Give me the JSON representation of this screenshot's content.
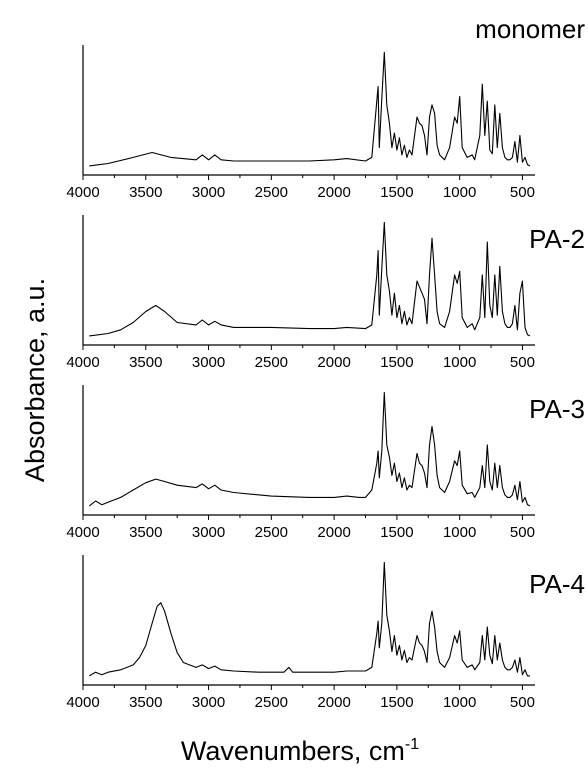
{
  "chart_data": {
    "type": "line",
    "ylabel": "Absorbance, a.u.",
    "xlabel": {
      "main": "Wavenumbers, cm",
      "sup": "-1"
    },
    "x_reversed": true,
    "xlim": [
      4000,
      400
    ],
    "ylim": [
      0,
      1
    ],
    "xticks": [
      4000,
      3500,
      3000,
      2500,
      2000,
      1500,
      1000,
      500
    ],
    "xtick_labels": [
      "4000",
      "3500",
      "3000",
      "2500",
      "2000",
      "1500",
      "1000",
      "500"
    ],
    "panels": [
      {
        "label": "monomer",
        "series": [
          {
            "x": [
              3950,
              3800,
              3600,
              3450,
              3300,
              3100,
              3050,
              3000,
              2950,
              2900,
              2800,
              2500,
              2200,
              2000,
              1900,
              1750,
              1700,
              1660,
              1650,
              1640,
              1620,
              1600,
              1580,
              1560,
              1540,
              1520,
              1500,
              1480,
              1460,
              1440,
              1420,
              1400,
              1380,
              1340,
              1320,
              1300,
              1280,
              1260,
              1240,
              1220,
              1200,
              1180,
              1160,
              1120,
              1080,
              1040,
              1020,
              1000,
              980,
              940,
              900,
              880,
              840,
              820,
              800,
              780,
              760,
              740,
              720,
              700,
              680,
              660,
              640,
              620,
              600,
              580,
              560,
              540,
              520,
              500,
              480,
              460,
              440
            ],
            "y": [
              0.05,
              0.07,
              0.12,
              0.16,
              0.12,
              0.1,
              0.14,
              0.1,
              0.14,
              0.1,
              0.09,
              0.09,
              0.09,
              0.1,
              0.11,
              0.09,
              0.12,
              0.58,
              0.7,
              0.2,
              0.6,
              0.98,
              0.55,
              0.4,
              0.2,
              0.32,
              0.18,
              0.28,
              0.14,
              0.22,
              0.12,
              0.18,
              0.14,
              0.45,
              0.4,
              0.38,
              0.3,
              0.14,
              0.45,
              0.55,
              0.48,
              0.22,
              0.14,
              0.1,
              0.2,
              0.45,
              0.4,
              0.62,
              0.2,
              0.12,
              0.14,
              0.1,
              0.3,
              0.72,
              0.3,
              0.58,
              0.18,
              0.15,
              0.55,
              0.2,
              0.48,
              0.2,
              0.12,
              0.1,
              0.1,
              0.12,
              0.25,
              0.08,
              0.3,
              0.08,
              0.12,
              0.06,
              0.05
            ]
          }
        ]
      },
      {
        "label": "PA-2",
        "series": [
          {
            "x": [
              3950,
              3800,
              3700,
              3600,
              3500,
              3420,
              3350,
              3250,
              3100,
              3050,
              3000,
              2950,
              2900,
              2800,
              2500,
              2200,
              2000,
              1900,
              1750,
              1700,
              1660,
              1650,
              1640,
              1620,
              1600,
              1580,
              1560,
              1540,
              1520,
              1500,
              1480,
              1460,
              1440,
              1420,
              1400,
              1380,
              1340,
              1320,
              1300,
              1280,
              1260,
              1240,
              1220,
              1200,
              1180,
              1160,
              1120,
              1080,
              1040,
              1020,
              1000,
              980,
              940,
              900,
              880,
              840,
              820,
              800,
              780,
              760,
              740,
              720,
              700,
              680,
              660,
              640,
              620,
              600,
              580,
              560,
              540,
              520,
              500,
              480,
              460,
              440
            ],
            "y": [
              0.05,
              0.07,
              0.1,
              0.16,
              0.25,
              0.3,
              0.25,
              0.16,
              0.14,
              0.18,
              0.14,
              0.17,
              0.14,
              0.12,
              0.12,
              0.11,
              0.11,
              0.12,
              0.11,
              0.14,
              0.55,
              0.75,
              0.22,
              0.6,
              0.98,
              0.55,
              0.42,
              0.22,
              0.4,
              0.2,
              0.3,
              0.15,
              0.25,
              0.14,
              0.2,
              0.15,
              0.5,
              0.45,
              0.4,
              0.35,
              0.15,
              0.55,
              0.85,
              0.55,
              0.25,
              0.15,
              0.12,
              0.25,
              0.55,
              0.48,
              0.58,
              0.2,
              0.12,
              0.15,
              0.1,
              0.2,
              0.55,
              0.2,
              0.82,
              0.3,
              0.2,
              0.55,
              0.22,
              0.62,
              0.25,
              0.15,
              0.12,
              0.12,
              0.15,
              0.3,
              0.1,
              0.4,
              0.5,
              0.12,
              0.06,
              0.05
            ]
          }
        ]
      },
      {
        "label": "PA-3",
        "series": [
          {
            "x": [
              3950,
              3900,
              3850,
              3800,
              3700,
              3600,
              3500,
              3420,
              3350,
              3250,
              3100,
              3050,
              3000,
              2950,
              2900,
              2800,
              2500,
              2200,
              2000,
              1900,
              1800,
              1750,
              1700,
              1660,
              1650,
              1640,
              1620,
              1600,
              1580,
              1560,
              1540,
              1520,
              1500,
              1480,
              1460,
              1440,
              1420,
              1400,
              1380,
              1340,
              1320,
              1300,
              1280,
              1260,
              1240,
              1220,
              1200,
              1180,
              1160,
              1120,
              1080,
              1040,
              1020,
              1000,
              980,
              940,
              900,
              880,
              840,
              820,
              800,
              780,
              760,
              740,
              720,
              700,
              680,
              660,
              640,
              620,
              600,
              580,
              560,
              540,
              520,
              500,
              480,
              460,
              440
            ],
            "y": [
              0.05,
              0.09,
              0.06,
              0.08,
              0.12,
              0.18,
              0.24,
              0.27,
              0.25,
              0.22,
              0.2,
              0.23,
              0.19,
              0.22,
              0.18,
              0.16,
              0.13,
              0.12,
              0.12,
              0.13,
              0.12,
              0.12,
              0.18,
              0.4,
              0.5,
              0.28,
              0.5,
              0.98,
              0.55,
              0.45,
              0.3,
              0.4,
              0.25,
              0.32,
              0.2,
              0.28,
              0.18,
              0.22,
              0.2,
              0.48,
              0.4,
              0.38,
              0.32,
              0.2,
              0.55,
              0.7,
              0.55,
              0.3,
              0.2,
              0.16,
              0.25,
              0.42,
              0.38,
              0.5,
              0.22,
              0.15,
              0.16,
              0.12,
              0.2,
              0.38,
              0.2,
              0.55,
              0.25,
              0.18,
              0.4,
              0.2,
              0.38,
              0.2,
              0.14,
              0.12,
              0.12,
              0.14,
              0.22,
              0.1,
              0.25,
              0.08,
              0.12,
              0.06,
              0.05
            ]
          }
        ]
      },
      {
        "label": "PA-4",
        "series": [
          {
            "x": [
              3950,
              3900,
              3850,
              3800,
              3700,
              3600,
              3550,
              3500,
              3450,
              3410,
              3380,
              3350,
              3300,
              3250,
              3200,
              3100,
              3050,
              3000,
              2950,
              2900,
              2800,
              2600,
              2400,
              2360,
              2330,
              2200,
              2000,
              1900,
              1750,
              1700,
              1660,
              1650,
              1640,
              1620,
              1600,
              1580,
              1560,
              1540,
              1520,
              1500,
              1480,
              1460,
              1440,
              1420,
              1400,
              1380,
              1340,
              1320,
              1300,
              1280,
              1260,
              1240,
              1220,
              1200,
              1180,
              1160,
              1120,
              1080,
              1040,
              1020,
              1000,
              980,
              940,
              900,
              880,
              840,
              820,
              800,
              780,
              760,
              740,
              720,
              700,
              680,
              660,
              640,
              620,
              600,
              580,
              560,
              540,
              520,
              500,
              480,
              460,
              440
            ],
            "y": [
              0.05,
              0.08,
              0.06,
              0.08,
              0.1,
              0.14,
              0.2,
              0.3,
              0.48,
              0.62,
              0.65,
              0.58,
              0.4,
              0.24,
              0.16,
              0.12,
              0.14,
              0.11,
              0.13,
              0.1,
              0.09,
              0.08,
              0.08,
              0.12,
              0.08,
              0.08,
              0.08,
              0.09,
              0.09,
              0.12,
              0.4,
              0.5,
              0.28,
              0.48,
              0.98,
              0.55,
              0.42,
              0.25,
              0.38,
              0.22,
              0.3,
              0.18,
              0.26,
              0.16,
              0.2,
              0.18,
              0.38,
              0.32,
              0.3,
              0.25,
              0.16,
              0.48,
              0.58,
              0.45,
              0.25,
              0.16,
              0.12,
              0.2,
              0.38,
              0.32,
              0.42,
              0.18,
              0.12,
              0.14,
              0.1,
              0.16,
              0.38,
              0.18,
              0.45,
              0.22,
              0.15,
              0.38,
              0.18,
              0.32,
              0.18,
              0.12,
              0.1,
              0.1,
              0.12,
              0.18,
              0.08,
              0.2,
              0.06,
              0.1,
              0.05,
              0.05
            ]
          }
        ]
      }
    ]
  }
}
